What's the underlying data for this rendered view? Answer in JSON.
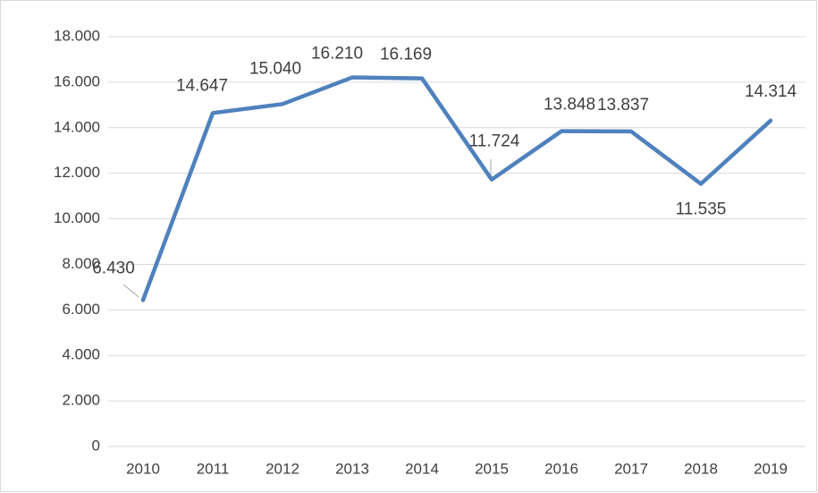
{
  "chart_data": {
    "type": "line",
    "categories": [
      "2010",
      "2011",
      "2012",
      "2013",
      "2014",
      "2015",
      "2016",
      "2017",
      "2018",
      "2019"
    ],
    "series": [
      {
        "color": "#4f81bd",
        "values": [
          6430,
          14647,
          15040,
          16210,
          16169,
          11724,
          13848,
          13837,
          11535,
          14314
        ],
        "value_labels": [
          "6.430",
          "14.647",
          "15.040",
          "16.210",
          "16.169",
          "11.724",
          "13.848",
          "13.837",
          "11.535",
          "14.314"
        ]
      }
    ],
    "ylim": [
      0,
      18000
    ],
    "yticks": [
      0,
      {
        "value": 2000,
        "label": "2.000"
      },
      {
        "value": 4000,
        "label": "4.000"
      },
      {
        "value": 6000,
        "label": "6.000"
      },
      {
        "value": 8000,
        "label": "8.000"
      },
      {
        "value": 10000,
        "label": "10.000"
      },
      {
        "value": 12000,
        "label": "12.000"
      },
      {
        "value": 14000,
        "label": "14.000"
      },
      {
        "value": 16000,
        "label": "16.000"
      },
      {
        "value": 18000,
        "label": "18.000"
      }
    ],
    "grid": true
  }
}
